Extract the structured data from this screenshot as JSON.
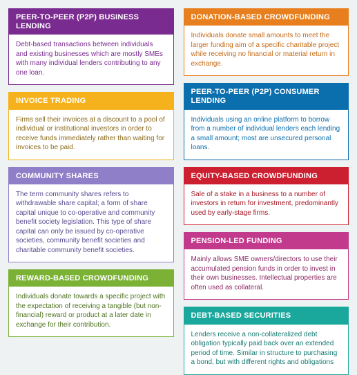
{
  "background_color": "#eff2f2",
  "columns": {
    "left": [
      {
        "title": "PEER-TO-PEER (P2P) BUSINESS LENDING",
        "header_bg": "#7a2b8f",
        "body_color": "#7a2b8f",
        "body": "Debt-based transactions between individuals and existing businesses which are mostly SMEs with many individual lenders contributing to any one loan."
      },
      {
        "title": "INVOICE TRADING",
        "header_bg": "#f6b21c",
        "body_color": "#8a6a1a",
        "body": "Firms sell their invoices at a discount to a pool of individual or institutional investors in order to receive funds immediately rather than waiting for invoices to be paid."
      },
      {
        "title": "COMMUNITY SHARES",
        "header_bg": "#8f7ec8",
        "body_color": "#5a4a90",
        "body": "The term community shares refers to withdrawable share capital; a form of share capital unique to co-operative and community benefit society legislation. This type of share capital can only be issued by co-operative societies, community benefit societies and charitable community benefit societies."
      },
      {
        "title": "REWARD-BASED CROWDFUNDING",
        "header_bg": "#7bb236",
        "body_color": "#4f7320",
        "body": "Individuals donate towards a specific project with the expectation of receiving a tangible (but non-financial) reward or product at a later date in exchange for their contribution."
      }
    ],
    "right": [
      {
        "title": "DONATION-BASED CROWDFUNDING",
        "header_bg": "#e87f1e",
        "body_color": "#c56a16",
        "body": "Individuals donate small amounts to meet the larger funding aim of a specific charitable project while receiving no financial or material return in exchange."
      },
      {
        "title": "PEER-TO-PEER (P2P) CONSUMER LENDING",
        "header_bg": "#0b6fae",
        "body_color": "#0b6fae",
        "body": "Individuals using an online platform to borrow from a number of individual lenders each lending a small amount; most are unsecured personal loans."
      },
      {
        "title": "EQUITY-BASED CROWDFUNDING",
        "header_bg": "#cc1f2f",
        "body_color": "#a31826",
        "body": "Sale of a stake in a business to a number of investors in return for investment, predominantly used by early-stage firms."
      },
      {
        "title": "PENSION-LED FUNDING",
        "header_bg": "#c23a8c",
        "body_color": "#8d2a66",
        "body": "Mainly allows SME owners/directors to use their accumulated pension funds in order to invest in their own businesses. Intellectual properties are often used as collateral."
      },
      {
        "title": "DEBT-BASED SECURITIES",
        "header_bg": "#1aa79c",
        "body_color": "#157a72",
        "body": "Lenders receive a non-collateralized debt obligation typically paid back over an extended period of time. Similar in structure to purchasing a bond, but with different rights and obligations"
      }
    ]
  }
}
